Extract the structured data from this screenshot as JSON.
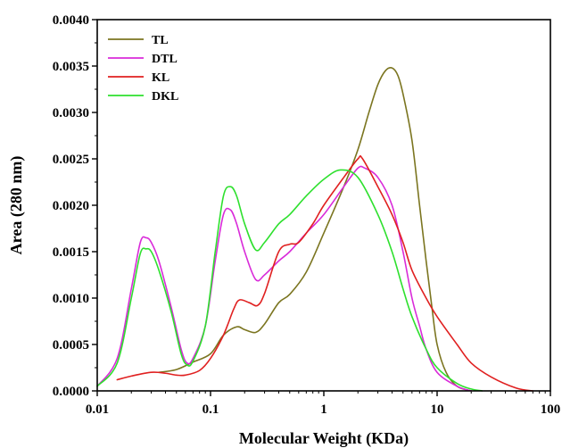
{
  "chart_data": {
    "type": "line",
    "xlabel": "Molecular Weight (KDa)",
    "ylabel": "Area (280 nm)",
    "x_scale": "log",
    "xlim": [
      0.01,
      100
    ],
    "ylim": [
      0,
      0.004
    ],
    "x_ticks": [
      0.01,
      0.1,
      1,
      10,
      100
    ],
    "x_tick_labels": [
      "0.01",
      "0.1",
      "1",
      "10",
      "100"
    ],
    "y_ticks": [
      0,
      0.0005,
      0.001,
      0.0015,
      0.002,
      0.0025,
      0.003,
      0.0035,
      0.004
    ],
    "y_tick_labels": [
      "0.0000",
      "0.0005",
      "0.0010",
      "0.0015",
      "0.0020",
      "0.0025",
      "0.0030",
      "0.0035",
      "0.0040"
    ],
    "grid": false,
    "legend_position": "top-left",
    "series": [
      {
        "name": "TL",
        "color": "#7b7520",
        "points": [
          [
            0.035,
            0.0002
          ],
          [
            0.05,
            0.00023
          ],
          [
            0.07,
            0.00031
          ],
          [
            0.1,
            0.0004
          ],
          [
            0.13,
            0.0006
          ],
          [
            0.17,
            0.00069
          ],
          [
            0.2,
            0.00066
          ],
          [
            0.25,
            0.00063
          ],
          [
            0.3,
            0.00072
          ],
          [
            0.4,
            0.00095
          ],
          [
            0.5,
            0.00104
          ],
          [
            0.7,
            0.00128
          ],
          [
            1,
            0.0017
          ],
          [
            1.5,
            0.0022
          ],
          [
            2,
            0.0026
          ],
          [
            2.5,
            0.003
          ],
          [
            3,
            0.0033
          ],
          [
            3.5,
            0.00345
          ],
          [
            4,
            0.00348
          ],
          [
            4.5,
            0.0034
          ],
          [
            5,
            0.0032
          ],
          [
            6,
            0.0027
          ],
          [
            7,
            0.002
          ],
          [
            8,
            0.0014
          ],
          [
            9,
            0.0009
          ],
          [
            10,
            0.0005
          ],
          [
            12,
            0.0002
          ],
          [
            15,
            5e-05
          ],
          [
            20,
            0.0
          ]
        ]
      },
      {
        "name": "DTL",
        "color": "#d92bd9",
        "points": [
          [
            0.01,
            5e-05
          ],
          [
            0.015,
            0.00035
          ],
          [
            0.02,
            0.0011
          ],
          [
            0.024,
            0.0016
          ],
          [
            0.027,
            0.00165
          ],
          [
            0.03,
            0.0016
          ],
          [
            0.035,
            0.0014
          ],
          [
            0.045,
            0.0009
          ],
          [
            0.055,
            0.00045
          ],
          [
            0.062,
            0.0003
          ],
          [
            0.07,
            0.00035
          ],
          [
            0.09,
            0.0007
          ],
          [
            0.11,
            0.0014
          ],
          [
            0.13,
            0.0019
          ],
          [
            0.15,
            0.00195
          ],
          [
            0.17,
            0.0018
          ],
          [
            0.2,
            0.0015
          ],
          [
            0.25,
            0.0012
          ],
          [
            0.3,
            0.00125
          ],
          [
            0.4,
            0.0014
          ],
          [
            0.5,
            0.0015
          ],
          [
            0.7,
            0.0017
          ],
          [
            1,
            0.0019
          ],
          [
            1.5,
            0.0022
          ],
          [
            2,
            0.0024
          ],
          [
            2.3,
            0.0024
          ],
          [
            3,
            0.0023
          ],
          [
            4,
            0.002
          ],
          [
            5,
            0.0015
          ],
          [
            6,
            0.001
          ],
          [
            7,
            0.0007
          ],
          [
            8,
            0.00045
          ],
          [
            10,
            0.0002
          ],
          [
            15,
            5e-05
          ],
          [
            20,
            0.0
          ]
        ]
      },
      {
        "name": "KL",
        "color": "#e02020",
        "points": [
          [
            0.015,
            0.00012
          ],
          [
            0.02,
            0.00016
          ],
          [
            0.03,
            0.0002
          ],
          [
            0.04,
            0.00019
          ],
          [
            0.05,
            0.00017
          ],
          [
            0.06,
            0.00017
          ],
          [
            0.08,
            0.00022
          ],
          [
            0.1,
            0.00035
          ],
          [
            0.13,
            0.0006
          ],
          [
            0.16,
            0.00088
          ],
          [
            0.18,
            0.00098
          ],
          [
            0.22,
            0.00095
          ],
          [
            0.26,
            0.00092
          ],
          [
            0.3,
            0.00105
          ],
          [
            0.4,
            0.0015
          ],
          [
            0.5,
            0.00158
          ],
          [
            0.6,
            0.0016
          ],
          [
            0.8,
            0.0018
          ],
          [
            1,
            0.002
          ],
          [
            1.5,
            0.0023
          ],
          [
            2,
            0.0025
          ],
          [
            2.2,
            0.0025
          ],
          [
            3,
            0.0022
          ],
          [
            4,
            0.0019
          ],
          [
            5,
            0.0016
          ],
          [
            6,
            0.0013
          ],
          [
            8,
            0.001
          ],
          [
            10,
            0.0008
          ],
          [
            15,
            0.0005
          ],
          [
            20,
            0.0003
          ],
          [
            30,
            0.00015
          ],
          [
            50,
            3e-05
          ],
          [
            70,
            0.0
          ]
        ]
      },
      {
        "name": "DKL",
        "color": "#2ee02e",
        "points": [
          [
            0.01,
            5e-05
          ],
          [
            0.015,
            0.0003
          ],
          [
            0.02,
            0.001
          ],
          [
            0.024,
            0.00148
          ],
          [
            0.027,
            0.00153
          ],
          [
            0.03,
            0.0015
          ],
          [
            0.035,
            0.0013
          ],
          [
            0.045,
            0.00085
          ],
          [
            0.055,
            0.0004
          ],
          [
            0.062,
            0.00028
          ],
          [
            0.07,
            0.00032
          ],
          [
            0.09,
            0.0007
          ],
          [
            0.11,
            0.0015
          ],
          [
            0.13,
            0.0021
          ],
          [
            0.15,
            0.0022
          ],
          [
            0.17,
            0.0021
          ],
          [
            0.2,
            0.0018
          ],
          [
            0.25,
            0.00152
          ],
          [
            0.3,
            0.0016
          ],
          [
            0.4,
            0.0018
          ],
          [
            0.5,
            0.0019
          ],
          [
            0.7,
            0.0021
          ],
          [
            1,
            0.00228
          ],
          [
            1.4,
            0.00238
          ],
          [
            2,
            0.0023
          ],
          [
            3,
            0.0019
          ],
          [
            4,
            0.0015
          ],
          [
            5,
            0.0011
          ],
          [
            6,
            0.0008
          ],
          [
            8,
            0.00045
          ],
          [
            10,
            0.00025
          ],
          [
            15,
            8e-05
          ],
          [
            20,
            2e-05
          ],
          [
            25,
            0.0
          ]
        ]
      }
    ]
  }
}
